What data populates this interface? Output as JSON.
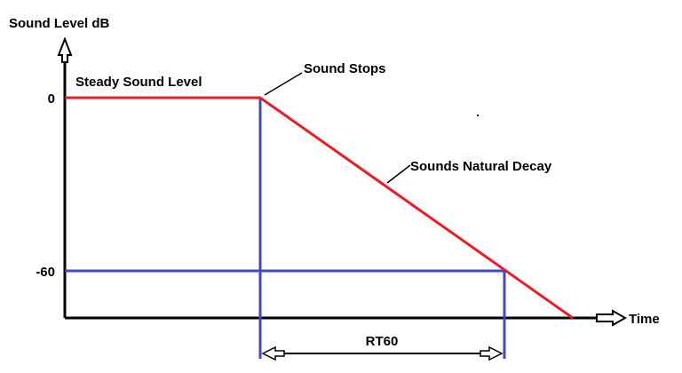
{
  "axis": {
    "y_label": "Sound Level  dB",
    "x_label": "Time",
    "y_ticks": [
      "0",
      "-60"
    ]
  },
  "annotations": {
    "steady": "Steady Sound Level",
    "stops": "Sound Stops",
    "decay": "Sounds Natural Decay",
    "interval": "RT60"
  }
}
